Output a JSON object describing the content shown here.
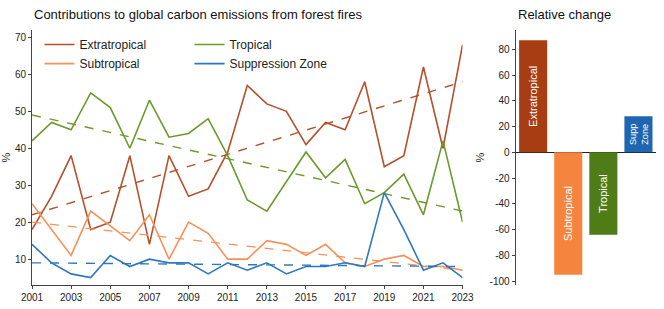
{
  "chart_data": [
    {
      "type": "line",
      "title": "Contributions to global carbon emissions from forest fires",
      "y_label": "%",
      "x": [
        2001,
        2002,
        2003,
        2004,
        2005,
        2006,
        2007,
        2008,
        2009,
        2010,
        2011,
        2012,
        2013,
        2014,
        2015,
        2016,
        2017,
        2018,
        2019,
        2020,
        2021,
        2022,
        2023
      ],
      "xlim": [
        2001,
        2023
      ],
      "xticks": [
        2001,
        2003,
        2005,
        2007,
        2009,
        2011,
        2013,
        2015,
        2017,
        2019,
        2021,
        2023
      ],
      "ylim": [
        3,
        72
      ],
      "yticks": [
        10,
        20,
        30,
        40,
        50,
        60,
        70
      ],
      "grid": false,
      "legend": "top left",
      "series": [
        {
          "name": "Extratropical",
          "color": "#b5502a",
          "values": [
            18,
            27,
            38,
            18,
            20,
            38,
            14,
            38,
            27,
            29,
            39,
            57,
            52,
            50,
            41,
            47,
            45,
            58,
            35,
            38,
            62,
            40,
            68
          ],
          "trend": [
            22,
            58
          ]
        },
        {
          "name": "Tropical",
          "color": "#6a9a2a",
          "values": [
            42,
            47,
            45,
            55,
            51,
            40,
            53,
            43,
            44,
            48,
            38,
            26,
            23,
            31,
            39,
            32,
            37,
            25,
            28,
            33,
            22,
            42,
            20
          ],
          "trend": [
            49,
            23
          ]
        },
        {
          "name": "Subtropical",
          "color": "#f7915a",
          "values": [
            25,
            18,
            11,
            23,
            19,
            15,
            22,
            10,
            20,
            17,
            10,
            10,
            15,
            14,
            11,
            14,
            9,
            8,
            10,
            11,
            8,
            8,
            7
          ],
          "trend": [
            20,
            7
          ]
        },
        {
          "name": "Suppression Zone",
          "color": "#2e78c0",
          "values": [
            14,
            9,
            6,
            5,
            11,
            8,
            10,
            9,
            9,
            6,
            9,
            7,
            9,
            6,
            8,
            8,
            9,
            8,
            28,
            18,
            7,
            9,
            5
          ],
          "trend": [
            9,
            8
          ]
        }
      ]
    },
    {
      "type": "bar",
      "title": "Relative change",
      "y_label": "%",
      "categories": [
        "Extratropical",
        "Subtropical",
        "Tropical",
        "Supp Zone"
      ],
      "values": [
        87,
        -95,
        -64,
        28
      ],
      "colors": [
        "#a83c12",
        "#f5843e",
        "#4f7c16",
        "#1f66b1"
      ],
      "ylim": [
        -103,
        95
      ],
      "yticks": [
        -100,
        -80,
        -60,
        -40,
        -20,
        0,
        20,
        40,
        60,
        80
      ],
      "grid": false,
      "tick_labels": "y"
    }
  ]
}
